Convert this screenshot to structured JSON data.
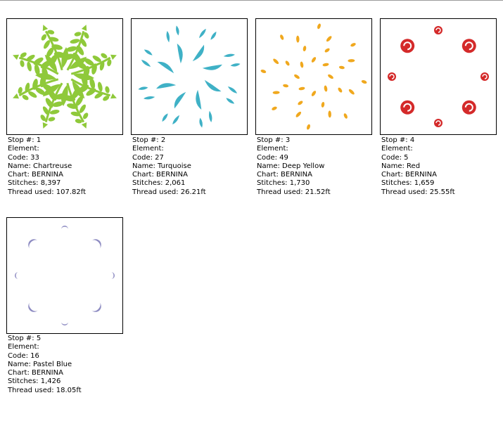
{
  "stops": [
    {
      "stop": "Stop #: 1",
      "element": "Element:",
      "code": "Code: 33",
      "name": "Name: Chartreuse",
      "chart": "Chart: BERNINA",
      "stitches": "Stitches: 8,397",
      "thread": "Thread used: 107.82ft",
      "color": "#8fc93a"
    },
    {
      "stop": "Stop #: 2",
      "element": "Element:",
      "code": "Code: 27",
      "name": "Name: Turquoise",
      "chart": "Chart: BERNINA",
      "stitches": "Stitches: 2,061",
      "thread": "Thread used: 26.21ft",
      "color": "#3fb1c6"
    },
    {
      "stop": "Stop #: 3",
      "element": "Element:",
      "code": "Code: 49",
      "name": "Name: Deep Yellow",
      "chart": "Chart: BERNINA",
      "stitches": "Stitches: 1,730",
      "thread": "Thread used: 21.52ft",
      "color": "#f0a81e"
    },
    {
      "stop": "Stop #: 4",
      "element": "Element:",
      "code": "Code: 5",
      "name": "Name: Red",
      "chart": "Chart: BERNINA",
      "stitches": "Stitches: 1,659",
      "thread": "Thread used: 25.55ft",
      "color": "#d42a2a"
    },
    {
      "stop": "Stop #: 5",
      "element": "Element:",
      "code": "Code: 16",
      "name": "Name: Pastel Blue",
      "chart": "Chart: BERNINA",
      "stitches": "Stitches: 1,426",
      "thread": "Thread used: 18.05ft",
      "color": "#8e8cc2"
    }
  ]
}
